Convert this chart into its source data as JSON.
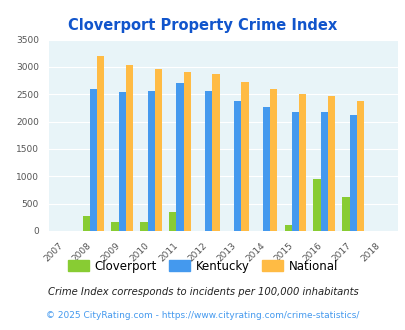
{
  "title": "Cloverport Property Crime Index",
  "years": [
    2007,
    2008,
    2009,
    2010,
    2011,
    2012,
    2013,
    2014,
    2015,
    2016,
    2017,
    2018
  ],
  "cloverport": [
    0,
    270,
    170,
    160,
    350,
    0,
    0,
    0,
    110,
    960,
    625,
    0
  ],
  "kentucky": [
    0,
    2600,
    2540,
    2555,
    2700,
    2560,
    2370,
    2260,
    2180,
    2180,
    2120,
    0
  ],
  "national": [
    0,
    3200,
    3040,
    2960,
    2900,
    2870,
    2730,
    2600,
    2500,
    2470,
    2370,
    0
  ],
  "cloverport_color": "#88cc33",
  "kentucky_color": "#4499ee",
  "national_color": "#ffbb44",
  "background_color": "#ddeef4",
  "plot_bg": "#e8f4f8",
  "ylim": [
    0,
    3500
  ],
  "yticks": [
    0,
    500,
    1000,
    1500,
    2000,
    2500,
    3000,
    3500
  ],
  "footnote1": "Crime Index corresponds to incidents per 100,000 inhabitants",
  "footnote2": "© 2025 CityRating.com - https://www.cityrating.com/crime-statistics/",
  "title_color": "#1155cc",
  "footnote1_color": "#222222",
  "footnote2_color": "#4499ee",
  "bar_width": 0.25
}
